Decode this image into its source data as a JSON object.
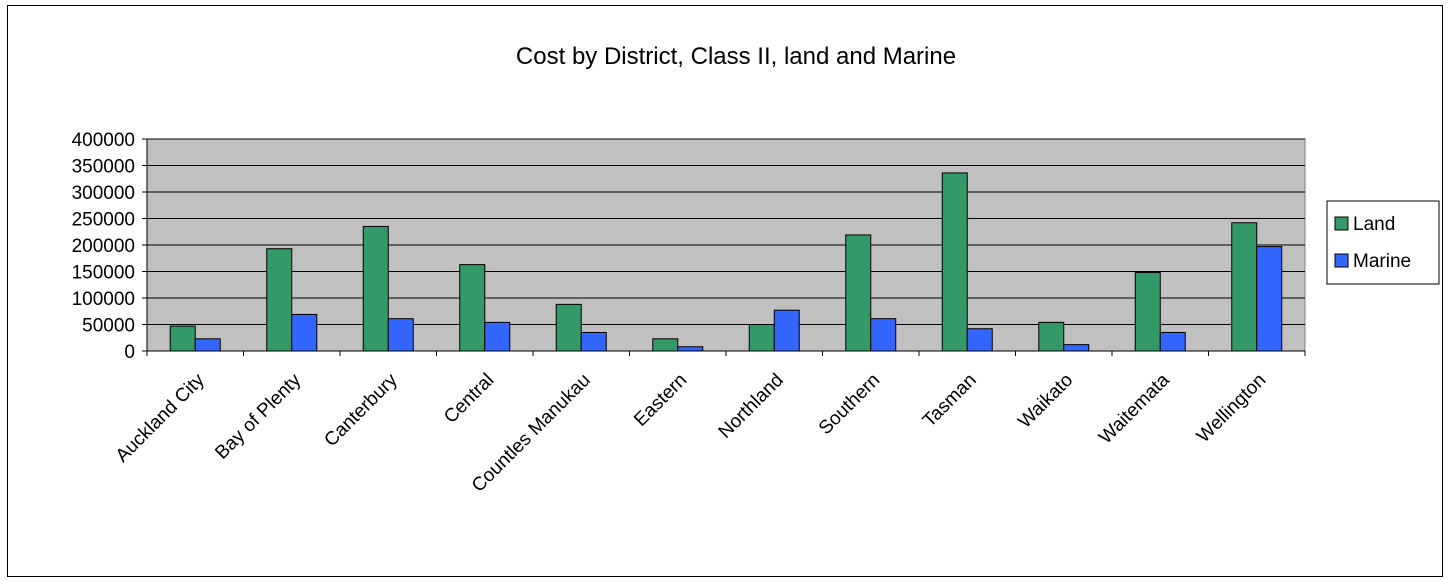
{
  "chart_data": {
    "type": "bar",
    "title": "Cost by District, Class II, land and Marine",
    "categories": [
      "Auckland City",
      "Bay of Plenty",
      "Canterbury",
      "Central",
      "Countles Manukau",
      "Eastern",
      "Northland",
      "Southern",
      "Tasman",
      "Waikato",
      "Waitemata",
      "Wellington"
    ],
    "series": [
      {
        "name": "Land",
        "color": "#339966",
        "values": [
          47000,
          193000,
          235000,
          163000,
          88000,
          23000,
          50000,
          219000,
          336000,
          54000,
          148000,
          242000
        ]
      },
      {
        "name": "Marine",
        "color": "#3366ff",
        "values": [
          23000,
          69000,
          61000,
          54000,
          35000,
          8000,
          77000,
          61000,
          42000,
          12000,
          35000,
          197000
        ]
      }
    ],
    "xlabel": "",
    "ylabel": "",
    "ylim": [
      0,
      400000
    ],
    "yticks": [
      0,
      50000,
      100000,
      150000,
      200000,
      250000,
      300000,
      350000,
      400000
    ],
    "grid": true,
    "plot_background": "#c0c0c0",
    "legend_position": "right"
  }
}
